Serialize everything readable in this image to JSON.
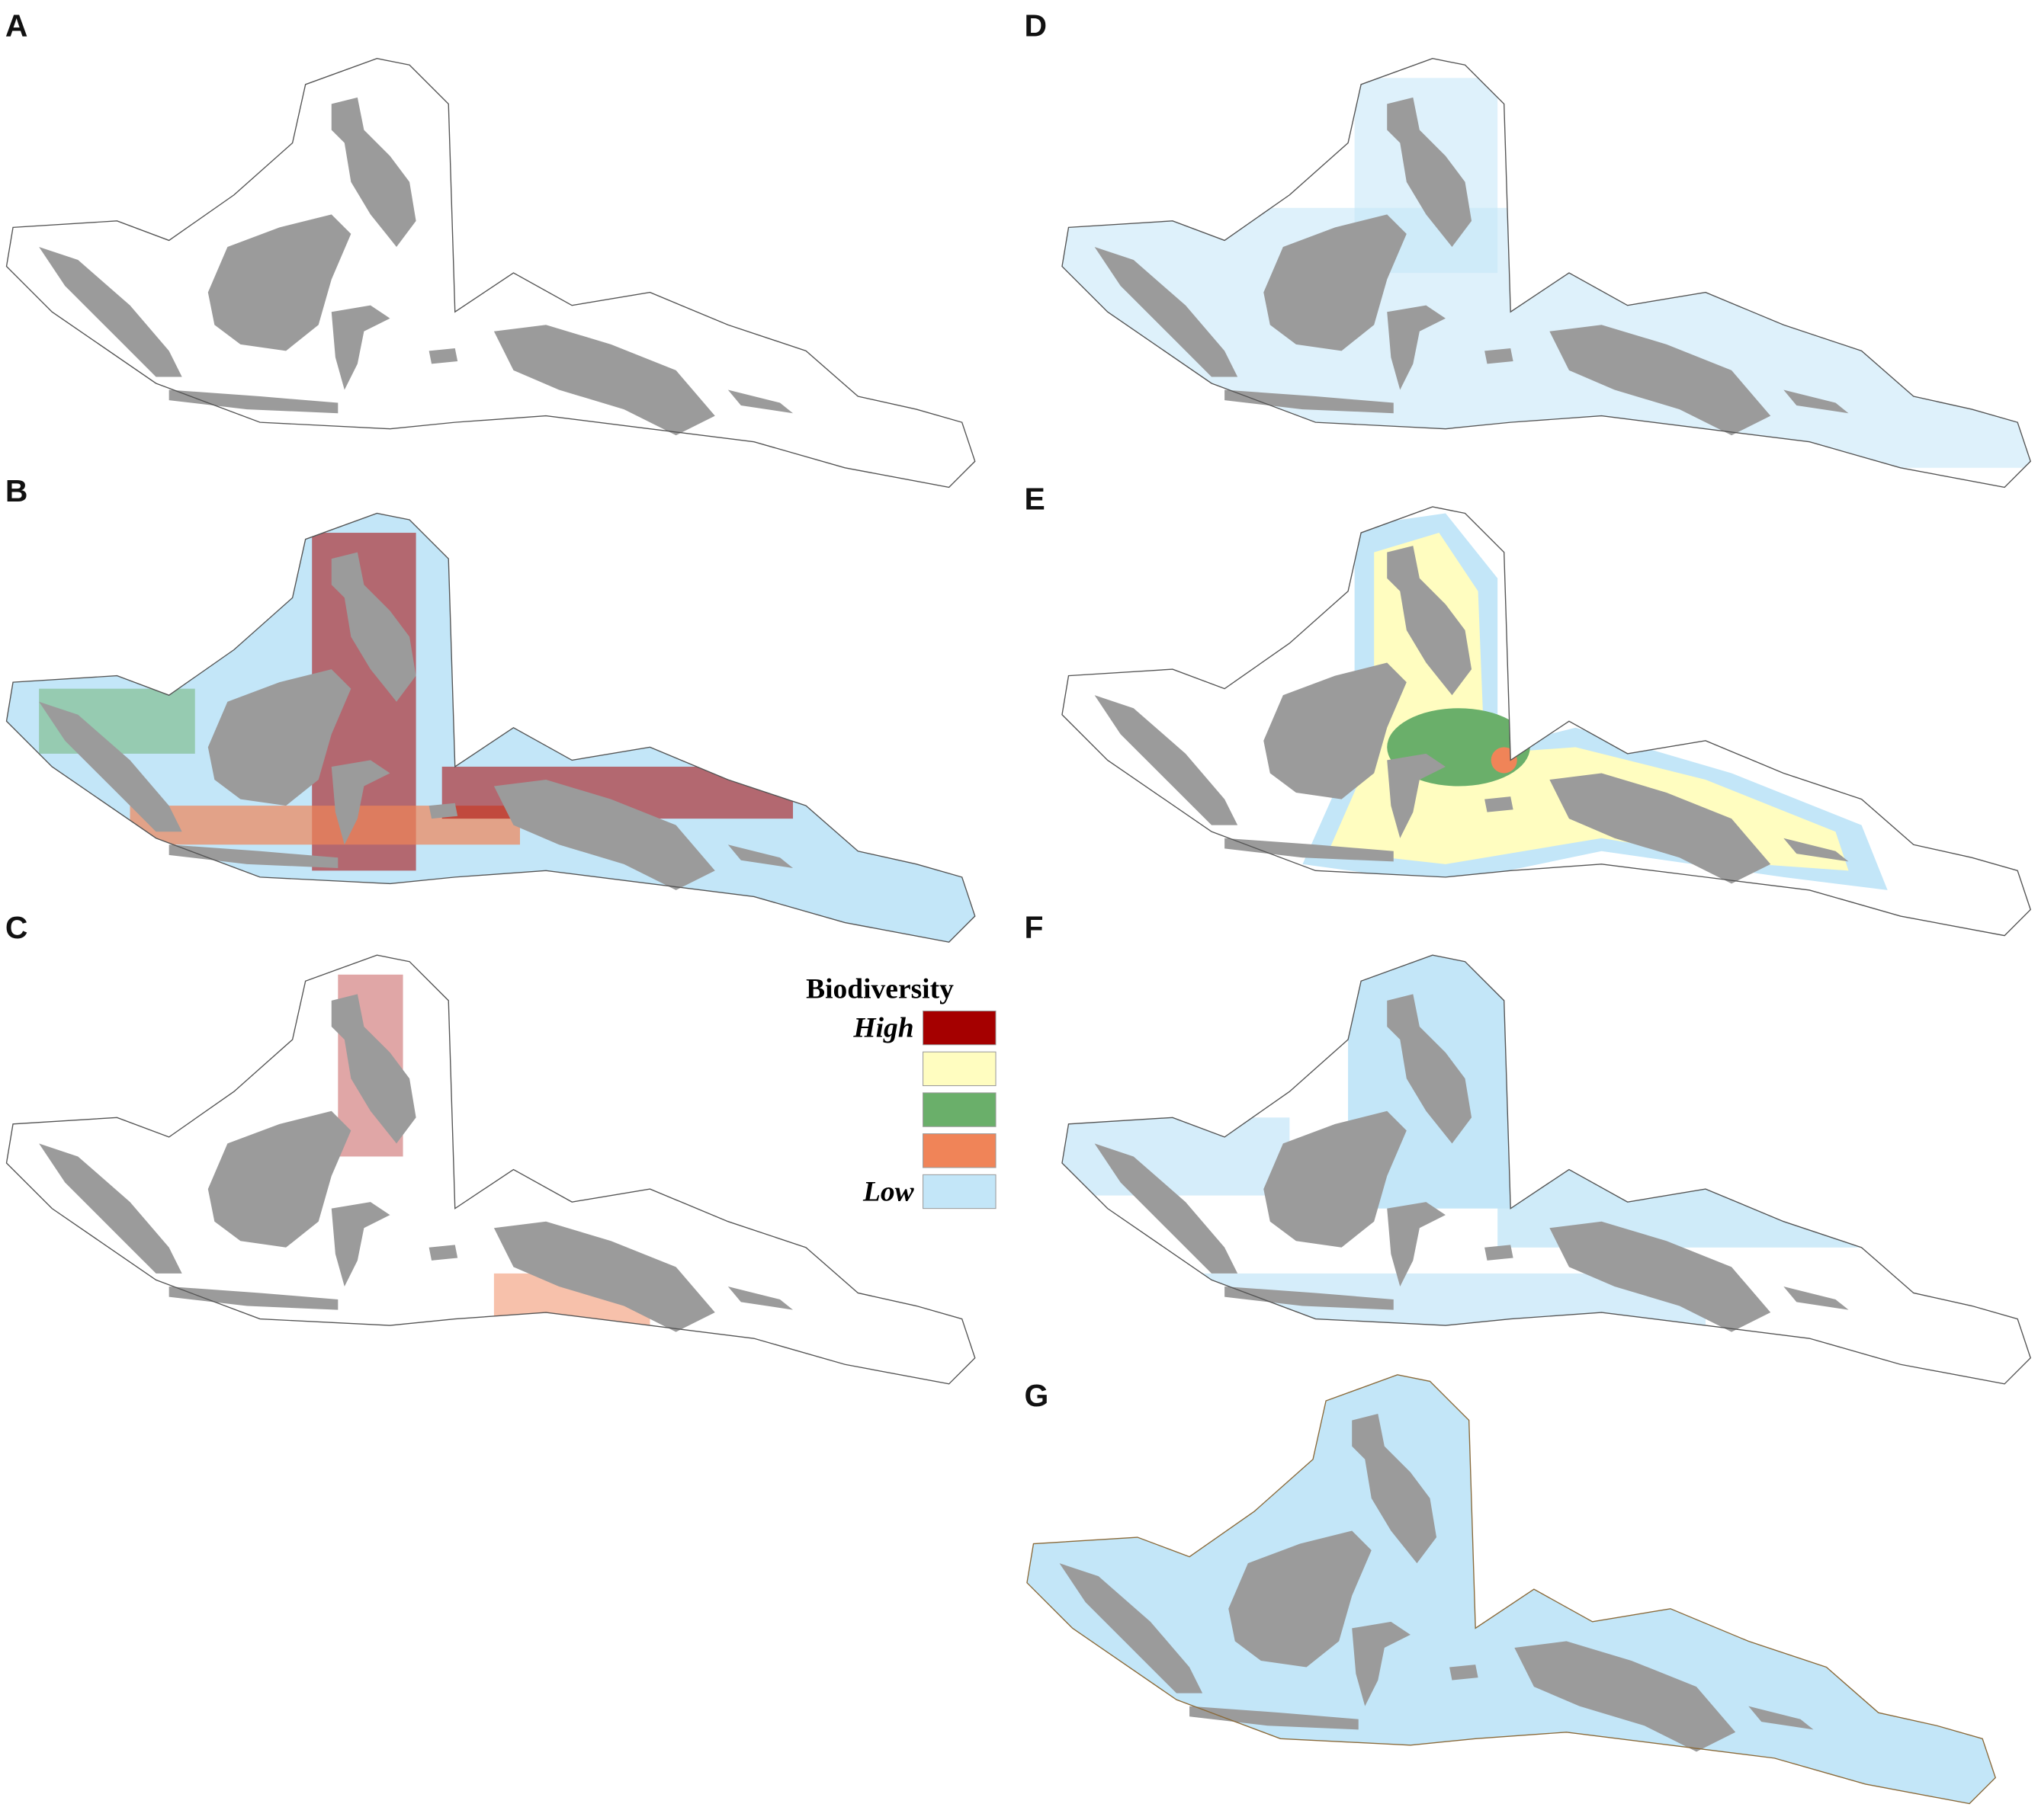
{
  "panels": [
    {
      "label": "A"
    },
    {
      "label": "B"
    },
    {
      "label": "C"
    },
    {
      "label": "D"
    },
    {
      "label": "E"
    },
    {
      "label": "F"
    },
    {
      "label": "G"
    }
  ],
  "legend": {
    "title": "Biodiversity",
    "items": [
      {
        "label": "High",
        "color": "#a50000"
      },
      {
        "color": "#fffdc0"
      },
      {
        "color": "#6aaf6a"
      },
      {
        "color": "#f08458"
      },
      {
        "label": "Low",
        "color": "#c3e6f8"
      }
    ]
  }
}
